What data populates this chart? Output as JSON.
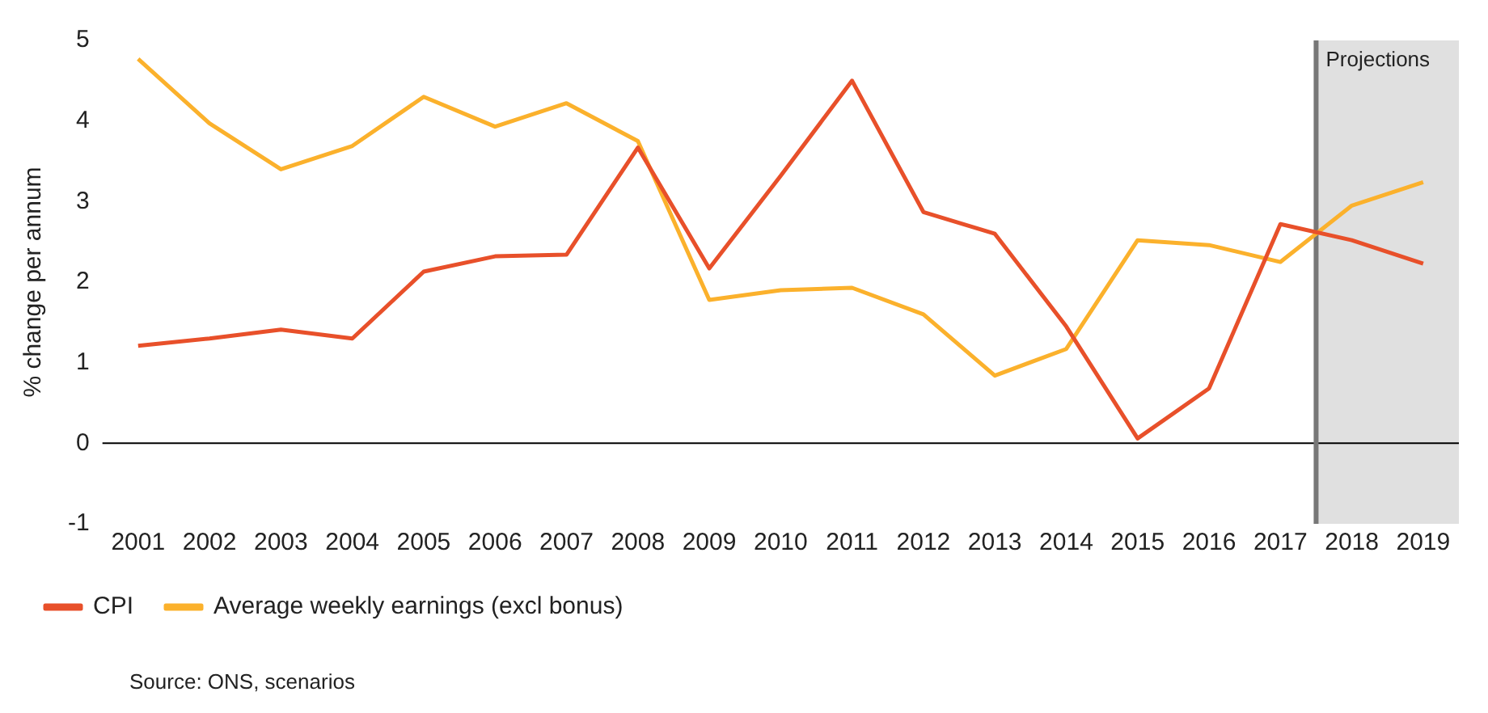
{
  "chart_data": {
    "type": "line",
    "ylabel": "% change per annum",
    "x": [
      2001,
      2002,
      2003,
      2004,
      2005,
      2006,
      2007,
      2008,
      2009,
      2010,
      2011,
      2012,
      2013,
      2014,
      2015,
      2016,
      2017,
      2018,
      2019
    ],
    "xlim": [
      2000.5,
      2019.5
    ],
    "xticks": [
      2001,
      2002,
      2003,
      2004,
      2005,
      2006,
      2007,
      2008,
      2009,
      2010,
      2011,
      2012,
      2013,
      2014,
      2015,
      2016,
      2017,
      2018,
      2019
    ],
    "ylim": [
      -1,
      5
    ],
    "yticks": [
      -1,
      0,
      1,
      2,
      3,
      4,
      5
    ],
    "grid": false,
    "legend": "bottom left",
    "marker": "none",
    "line_style": "solid",
    "series": [
      {
        "name": "CPI",
        "color": "#e8502a",
        "values": [
          1.21,
          1.3,
          1.41,
          1.3,
          2.13,
          2.32,
          2.34,
          3.67,
          2.17,
          3.32,
          4.5,
          2.87,
          2.6,
          1.45,
          0.06,
          0.68,
          2.72,
          2.52,
          2.23
        ]
      },
      {
        "name": "Average weekly earnings (excl bonus)",
        "color": "#fbb12c",
        "values": [
          4.77,
          3.97,
          3.4,
          3.69,
          4.3,
          3.93,
          4.22,
          3.75,
          1.78,
          1.9,
          1.93,
          1.6,
          0.84,
          1.17,
          2.52,
          2.46,
          2.25,
          2.95,
          3.24
        ]
      }
    ],
    "bands": [
      {
        "axis": "x",
        "from": 2017.5,
        "to": 2019.5,
        "label": "Projections",
        "color": "#e0e0e0"
      }
    ],
    "ref_lines": [
      {
        "axis": "y",
        "value": 0,
        "color": "#000000"
      },
      {
        "axis": "x",
        "value": 2017.5,
        "color": "#777777"
      }
    ],
    "annotations": [
      "Source: ONS, scenarios"
    ]
  }
}
